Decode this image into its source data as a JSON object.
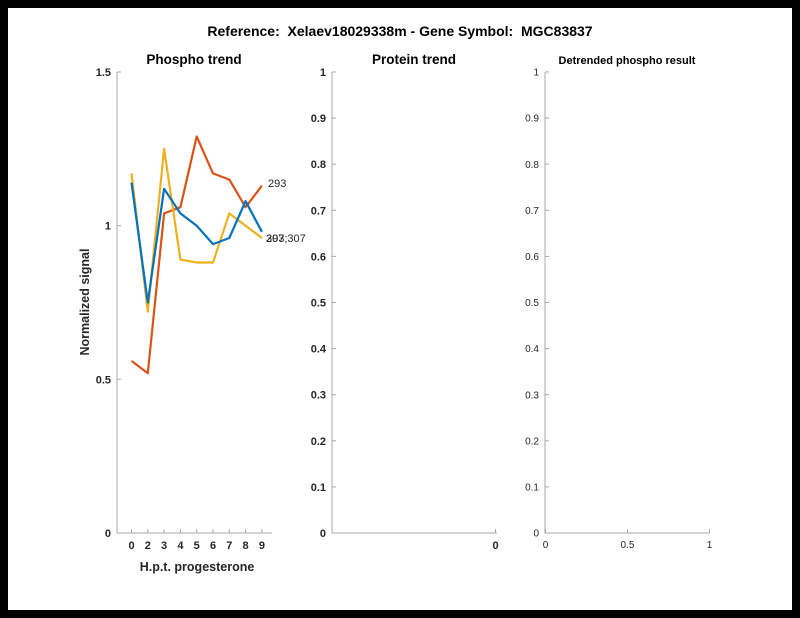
{
  "frame": {
    "background": "#000000",
    "canvas": "#ffffff"
  },
  "figure_title": "Reference:  Xelaev18029338m - Gene Symbol:  MGC83837",
  "palette": {
    "red": "#D95319",
    "blue": "#0072BD",
    "yellow": "#EDB120",
    "axis": "#a8a8a8",
    "text": "#262626"
  },
  "chart_data": [
    {
      "type": "line",
      "title": "Phospho trend",
      "xlabel": "H.p.t. progesterone",
      "ylabel": "Normalized signal",
      "x_tick_labels": [
        "0",
        "2",
        "3",
        "4",
        "5",
        "6",
        "7",
        "8",
        "9"
      ],
      "y_tick_labels": [
        "0",
        "0.5",
        "1",
        "1.5"
      ],
      "y_tick_values": [
        0,
        0.5,
        1,
        1.5
      ],
      "ylim": [
        0,
        1.5
      ],
      "grid": false,
      "legend_position": "line-end-labels",
      "series": [
        {
          "name": "293",
          "color": "#D95319",
          "values": [
            0.56,
            0.52,
            1.04,
            1.06,
            1.29,
            1.17,
            1.15,
            1.06,
            1.13
          ]
        },
        {
          "name": "293;307",
          "color": "#EDB120",
          "values": [
            1.17,
            0.72,
            1.25,
            0.89,
            0.88,
            0.88,
            1.04,
            1.0,
            0.96
          ]
        },
        {
          "name": "307",
          "color": "#0072BD",
          "values": [
            1.14,
            0.75,
            1.12,
            1.04,
            1.0,
            0.94,
            0.96,
            1.08,
            0.98
          ]
        }
      ],
      "end_labels": [
        {
          "text": "293",
          "x": 268,
          "y": 183
        },
        {
          "text": "293;307",
          "x": 266,
          "y": 238
        },
        {
          "text": "307",
          "x": 266,
          "y": 238
        }
      ]
    },
    {
      "type": "line",
      "title": "Protein trend",
      "xlabel": "",
      "ylabel": "",
      "x_tick_labels": [
        "0"
      ],
      "y_tick_labels": [
        "0",
        "0.1",
        "0.2",
        "0.3",
        "0.4",
        "0.5",
        "0.6",
        "0.7",
        "0.8",
        "0.9",
        "1"
      ],
      "y_tick_values": [
        0,
        0.1,
        0.2,
        0.3,
        0.4,
        0.5,
        0.6,
        0.7,
        0.8,
        0.9,
        1
      ],
      "ylim": [
        0,
        1
      ],
      "grid": false,
      "series": [],
      "end_labels": []
    },
    {
      "type": "line",
      "title": "Detrended phospho result",
      "xlabel": "",
      "ylabel": "",
      "x_tick_labels": [
        "0",
        "0.5",
        "1"
      ],
      "x_tick_values": [
        0,
        0.5,
        1
      ],
      "y_tick_labels": [
        "0",
        "0.1",
        "0.2",
        "0.3",
        "0.4",
        "0.5",
        "0.6",
        "0.7",
        "0.8",
        "0.9",
        "1"
      ],
      "y_tick_values": [
        0,
        0.1,
        0.2,
        0.3,
        0.4,
        0.5,
        0.6,
        0.7,
        0.8,
        0.9,
        1
      ],
      "ylim": [
        0,
        1
      ],
      "xlim": [
        0,
        1
      ],
      "grid": false,
      "series": [],
      "end_labels": []
    }
  ]
}
